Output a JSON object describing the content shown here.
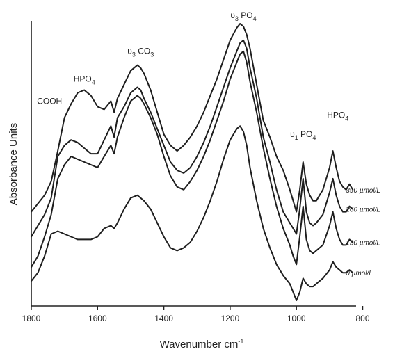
{
  "chart_data": {
    "type": "line",
    "xlabel": "Wavenumber cm",
    "xlabel_sup": "-1",
    "ylabel": "Absorbance Units",
    "xlim": [
      1800,
      820
    ],
    "x_reversed": true,
    "y_tick_labels": false,
    "ylim": [
      0,
      10
    ],
    "xticks": [
      1800,
      1600,
      1400,
      1200,
      1000,
      800
    ],
    "grid": false,
    "peak_labels": [
      {
        "name": "cooh",
        "text": "COOH",
        "x": 1745,
        "y": 6.9
      },
      {
        "name": "hpo4-left",
        "pre": "HPO",
        "sub": "4",
        "x": 1640,
        "y": 7.7
      },
      {
        "name": "v3-co3",
        "pre": "υ",
        "sub": "3",
        "post": " CO",
        "sub2": "3",
        "x": 1470,
        "y": 8.7
      },
      {
        "name": "v3-po4",
        "pre": "υ",
        "sub": "3",
        "post": " PO",
        "sub2": "4",
        "x": 1160,
        "y": 10.0
      },
      {
        "name": "v1-po4",
        "pre": "υ",
        "sub": "1",
        "post": " PO",
        "sub2": "4",
        "x": 980,
        "y": 5.7
      },
      {
        "name": "hpo4-right",
        "pre": "HPO",
        "sub": "4",
        "x": 875,
        "y": 6.4
      }
    ],
    "series": [
      {
        "name": "390 µmol/L",
        "x": [
          1800,
          1780,
          1760,
          1740,
          1720,
          1700,
          1680,
          1660,
          1640,
          1620,
          1600,
          1580,
          1560,
          1550,
          1540,
          1520,
          1500,
          1480,
          1470,
          1460,
          1440,
          1420,
          1400,
          1380,
          1360,
          1340,
          1320,
          1300,
          1280,
          1260,
          1240,
          1220,
          1200,
          1180,
          1170,
          1160,
          1150,
          1140,
          1120,
          1100,
          1080,
          1060,
          1040,
          1020,
          1010,
          1000,
          990,
          980,
          970,
          960,
          950,
          940,
          920,
          900,
          890,
          880,
          870,
          860,
          850,
          840,
          830
        ],
        "y": [
          3.2,
          3.5,
          3.8,
          4.3,
          5.4,
          6.6,
          7.1,
          7.5,
          7.6,
          7.4,
          7.0,
          6.9,
          7.2,
          6.8,
          7.3,
          7.8,
          8.3,
          8.5,
          8.4,
          8.2,
          7.6,
          6.8,
          6.0,
          5.6,
          5.4,
          5.6,
          5.9,
          6.3,
          6.8,
          7.4,
          8.0,
          8.7,
          9.4,
          9.85,
          10.0,
          9.9,
          9.6,
          9.1,
          7.8,
          6.5,
          5.9,
          5.2,
          4.7,
          4.0,
          3.6,
          3.2,
          4.0,
          5.0,
          4.2,
          3.8,
          3.6,
          3.6,
          4.0,
          4.8,
          5.4,
          4.8,
          4.3,
          4.1,
          4.0,
          4.2,
          4.0
        ]
      },
      {
        "name": "260 µmol/L",
        "x": [
          1800,
          1780,
          1760,
          1740,
          1720,
          1700,
          1680,
          1660,
          1640,
          1620,
          1600,
          1580,
          1560,
          1550,
          1540,
          1520,
          1500,
          1480,
          1470,
          1460,
          1440,
          1420,
          1400,
          1380,
          1360,
          1340,
          1320,
          1300,
          1280,
          1260,
          1240,
          1220,
          1200,
          1180,
          1170,
          1160,
          1150,
          1140,
          1120,
          1100,
          1080,
          1060,
          1040,
          1020,
          1010,
          1000,
          990,
          980,
          970,
          960,
          950,
          940,
          920,
          900,
          890,
          880,
          870,
          860,
          850,
          840,
          830
        ],
        "y": [
          2.3,
          2.7,
          3.1,
          3.7,
          5.2,
          5.6,
          5.8,
          5.7,
          5.5,
          5.3,
          5.3,
          5.8,
          6.3,
          5.9,
          6.6,
          7.0,
          7.5,
          7.7,
          7.6,
          7.3,
          6.8,
          6.2,
          5.6,
          5.0,
          4.7,
          4.6,
          4.8,
          5.2,
          5.7,
          6.3,
          7.0,
          7.7,
          8.4,
          9.0,
          9.3,
          9.4,
          9.1,
          8.4,
          7.3,
          5.9,
          5.0,
          4.0,
          3.2,
          2.8,
          2.6,
          2.4,
          3.3,
          4.4,
          3.2,
          2.8,
          2.7,
          2.8,
          3.1,
          3.9,
          4.4,
          3.8,
          3.4,
          3.2,
          3.2,
          3.4,
          3.3
        ]
      },
      {
        "name": "130 µmol/L",
        "x": [
          1800,
          1780,
          1760,
          1740,
          1720,
          1700,
          1680,
          1660,
          1640,
          1620,
          1600,
          1580,
          1560,
          1550,
          1540,
          1520,
          1500,
          1480,
          1470,
          1460,
          1440,
          1420,
          1400,
          1380,
          1360,
          1340,
          1320,
          1300,
          1280,
          1260,
          1240,
          1220,
          1200,
          1180,
          1170,
          1160,
          1150,
          1140,
          1120,
          1100,
          1080,
          1060,
          1040,
          1020,
          1010,
          1000,
          990,
          980,
          970,
          960,
          950,
          940,
          920,
          900,
          890,
          880,
          870,
          860,
          850,
          840,
          830
        ],
        "y": [
          1.2,
          1.6,
          2.3,
          3.1,
          4.4,
          4.9,
          5.2,
          5.1,
          5.0,
          4.9,
          4.8,
          5.2,
          5.6,
          5.3,
          5.9,
          6.6,
          7.2,
          7.4,
          7.3,
          7.1,
          6.6,
          6.0,
          5.2,
          4.5,
          4.1,
          4.0,
          4.3,
          4.7,
          5.2,
          5.8,
          6.5,
          7.2,
          8.0,
          8.6,
          8.9,
          9.0,
          8.6,
          7.9,
          6.8,
          5.5,
          4.4,
          3.4,
          2.6,
          2.0,
          1.6,
          1.3,
          2.3,
          3.4,
          2.2,
          1.8,
          1.7,
          1.8,
          2.0,
          2.7,
          3.2,
          2.6,
          2.2,
          2.0,
          2.0,
          2.2,
          2.1
        ]
      },
      {
        "name": "0 µmol/L",
        "x": [
          1800,
          1780,
          1760,
          1740,
          1720,
          1700,
          1680,
          1660,
          1640,
          1620,
          1600,
          1580,
          1560,
          1550,
          1540,
          1520,
          1500,
          1480,
          1470,
          1460,
          1440,
          1420,
          1400,
          1380,
          1360,
          1340,
          1320,
          1300,
          1280,
          1260,
          1240,
          1220,
          1200,
          1180,
          1170,
          1160,
          1150,
          1140,
          1120,
          1100,
          1080,
          1060,
          1040,
          1020,
          1010,
          1000,
          990,
          980,
          970,
          960,
          950,
          940,
          920,
          900,
          890,
          880,
          870,
          860,
          850,
          840,
          830
        ],
        "y": [
          0.7,
          1.0,
          1.6,
          2.4,
          2.5,
          2.4,
          2.3,
          2.2,
          2.2,
          2.2,
          2.3,
          2.6,
          2.7,
          2.6,
          2.8,
          3.3,
          3.7,
          3.8,
          3.7,
          3.6,
          3.3,
          2.8,
          2.3,
          1.9,
          1.8,
          1.9,
          2.1,
          2.5,
          3.0,
          3.6,
          4.3,
          5.1,
          5.8,
          6.2,
          6.3,
          6.1,
          5.6,
          4.8,
          3.6,
          2.6,
          1.9,
          1.3,
          0.9,
          0.6,
          0.3,
          0.0,
          0.3,
          0.8,
          0.6,
          0.5,
          0.5,
          0.6,
          0.8,
          1.1,
          1.4,
          1.2,
          1.1,
          1.0,
          1.0,
          1.1,
          1.0
        ]
      }
    ]
  }
}
